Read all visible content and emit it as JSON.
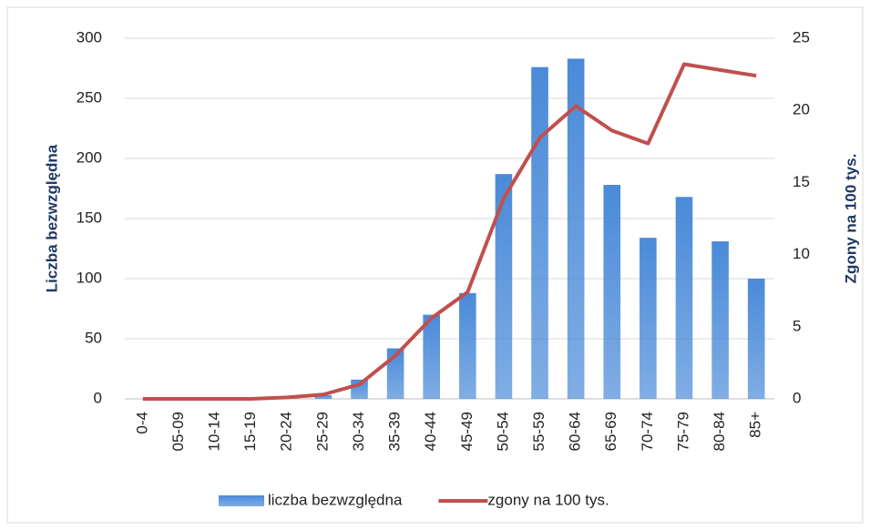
{
  "chart_data": {
    "type": "bar_line",
    "categories": [
      "0-4",
      "05-09",
      "10-14",
      "15-19",
      "20-24",
      "25-29",
      "30-34",
      "35-39",
      "40-44",
      "45-49",
      "50-54",
      "55-59",
      "60-64",
      "65-69",
      "70-74",
      "75-79",
      "80-84",
      "85+"
    ],
    "series": [
      {
        "name": "liczba bezwzględna",
        "color": "#4a8ad8",
        "type": "bar",
        "values": [
          0,
          0,
          0,
          0,
          1,
          3,
          16,
          42,
          70,
          88,
          187,
          276,
          283,
          178,
          134,
          168,
          131,
          100
        ]
      },
      {
        "name": "zgony na 100 tys.",
        "color": "#c0504d",
        "type": "line",
        "axis": "y2",
        "values": [
          0,
          0,
          0,
          0,
          0.1,
          0.3,
          1.0,
          3.0,
          5.6,
          7.4,
          13.9,
          18.1,
          20.3,
          18.6,
          17.7,
          23.2,
          22.8,
          22.4
        ]
      }
    ],
    "y_label": "Liczba bezwzględna",
    "y2_label": "Zgony na 100 tys.",
    "ylim": [
      0,
      300
    ],
    "yticks": [
      0,
      50,
      100,
      150,
      200,
      250,
      300
    ],
    "y2lim": [
      0,
      25
    ],
    "y2ticks": [
      0,
      5,
      10,
      15,
      20,
      25
    ],
    "grid": true,
    "legend": "bottom"
  }
}
